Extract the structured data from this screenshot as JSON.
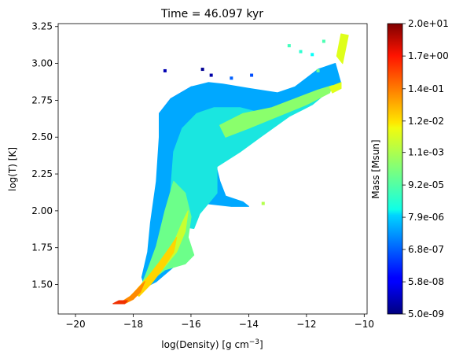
{
  "chart_data": {
    "type": "heatmap",
    "title": "Time = 46.097 kyr",
    "xlabel": "log(Density) [g cm",
    "xlabel_sup": "−3",
    "xlabel_end": "]",
    "ylabel": "log(T) [K]",
    "xlim": [
      -20.6,
      -9.9
    ],
    "ylim": [
      1.3,
      3.27
    ],
    "xticks": [
      -20,
      -18,
      -16,
      -14,
      -12,
      -10
    ],
    "xtick_labels": [
      "−20",
      "−18",
      "−16",
      "−14",
      "−12",
      "−10"
    ],
    "yticks": [
      1.5,
      1.75,
      2.0,
      2.25,
      2.5,
      2.75,
      3.0,
      3.25
    ],
    "ytick_labels": [
      "1.50",
      "1.75",
      "2.00",
      "2.25",
      "2.50",
      "2.75",
      "3.00",
      "3.25"
    ],
    "colorbar": {
      "label": "Mass [Msun]",
      "colormap": "jet",
      "scale": "log",
      "range": [
        5e-09,
        20.0
      ],
      "tick_labels": [
        "5.0e-09",
        "5.8e-08",
        "6.8e-07",
        "7.9e-06",
        "9.2e-05",
        "1.1e-03",
        "1.2e-02",
        "1.4e-01",
        "1.7e+00",
        "2.0e+01"
      ]
    },
    "regions": [
      {
        "level": 0.02,
        "color": "#0026ff",
        "outline": [
          [
            -17.1,
            2.66
          ],
          [
            -16.7,
            2.76
          ],
          [
            -16.0,
            2.84
          ],
          [
            -15.4,
            2.86
          ],
          [
            -14.9,
            2.84
          ],
          [
            -14.5,
            2.82
          ],
          [
            -15.0,
            2.74
          ],
          [
            -16.0,
            2.62
          ],
          [
            -16.7,
            2.55
          ],
          [
            -17.1,
            2.5
          ]
        ]
      },
      {
        "level": 0.15,
        "color": "#00a8ff",
        "outline": [
          [
            -17.1,
            2.5
          ],
          [
            -17.1,
            2.66
          ],
          [
            -16.7,
            2.76
          ],
          [
            -16.0,
            2.84
          ],
          [
            -15.4,
            2.87
          ],
          [
            -14.9,
            2.86
          ],
          [
            -14.0,
            2.83
          ],
          [
            -13.0,
            2.8
          ],
          [
            -12.4,
            2.84
          ],
          [
            -12.0,
            2.9
          ],
          [
            -11.6,
            2.96
          ],
          [
            -11.0,
            3.0
          ],
          [
            -10.8,
            2.86
          ],
          [
            -11.5,
            2.82
          ],
          [
            -12.5,
            2.74
          ],
          [
            -13.8,
            2.63
          ],
          [
            -14.8,
            2.5
          ],
          [
            -15.2,
            2.36
          ],
          [
            -15.0,
            2.2
          ],
          [
            -14.8,
            2.1
          ],
          [
            -14.2,
            2.06
          ],
          [
            -14.0,
            2.03
          ],
          [
            -14.6,
            2.03
          ],
          [
            -15.5,
            2.05
          ],
          [
            -16.0,
            2.02
          ],
          [
            -16.3,
            1.86
          ],
          [
            -16.4,
            1.8
          ],
          [
            -16.1,
            1.73
          ],
          [
            -16.6,
            1.62
          ],
          [
            -17.2,
            1.52
          ],
          [
            -17.6,
            1.48
          ],
          [
            -17.7,
            1.55
          ],
          [
            -17.5,
            1.72
          ],
          [
            -17.4,
            1.92
          ],
          [
            -17.2,
            2.2
          ]
        ]
      },
      {
        "level": 0.35,
        "color": "#1ae6e0",
        "outline": [
          [
            -16.5,
            1.9
          ],
          [
            -16.7,
            2.14
          ],
          [
            -16.6,
            2.4
          ],
          [
            -16.3,
            2.56
          ],
          [
            -15.8,
            2.66
          ],
          [
            -15.2,
            2.7
          ],
          [
            -14.3,
            2.7
          ],
          [
            -13.5,
            2.66
          ],
          [
            -12.7,
            2.7
          ],
          [
            -12.2,
            2.74
          ],
          [
            -11.6,
            2.8
          ],
          [
            -11.2,
            2.84
          ],
          [
            -11.0,
            2.85
          ],
          [
            -11.8,
            2.72
          ],
          [
            -12.6,
            2.64
          ],
          [
            -13.6,
            2.5
          ],
          [
            -14.3,
            2.4
          ],
          [
            -15.1,
            2.3
          ],
          [
            -15.1,
            2.12
          ],
          [
            -15.7,
            1.98
          ],
          [
            -15.9,
            1.88
          ]
        ]
      },
      {
        "level": 0.5,
        "color": "#6cff8a",
        "outline": [
          [
            -17.8,
            1.45
          ],
          [
            -17.3,
            1.54
          ],
          [
            -16.9,
            1.6
          ],
          [
            -16.2,
            1.64
          ],
          [
            -15.9,
            1.7
          ],
          [
            -16.1,
            1.82
          ],
          [
            -16.0,
            1.96
          ],
          [
            -16.2,
            2.12
          ],
          [
            -16.6,
            2.2
          ],
          [
            -16.9,
            2.0
          ],
          [
            -17.2,
            1.76
          ],
          [
            -17.5,
            1.6
          ],
          [
            -17.7,
            1.5
          ]
        ]
      },
      {
        "level": 0.5,
        "color": "#8aff6c",
        "outline": [
          [
            -15.0,
            2.58
          ],
          [
            -14.2,
            2.66
          ],
          [
            -13.2,
            2.7
          ],
          [
            -12.4,
            2.76
          ],
          [
            -11.6,
            2.82
          ],
          [
            -11.1,
            2.85
          ],
          [
            -11.2,
            2.8
          ],
          [
            -12.0,
            2.72
          ],
          [
            -13.0,
            2.64
          ],
          [
            -14.0,
            2.56
          ],
          [
            -14.8,
            2.5
          ]
        ]
      },
      {
        "level": 0.6,
        "color": "#c8ff30",
        "outline": [
          [
            -18.1,
            1.42
          ],
          [
            -17.6,
            1.52
          ],
          [
            -17.1,
            1.62
          ],
          [
            -16.6,
            1.78
          ],
          [
            -16.3,
            1.92
          ],
          [
            -16.1,
            2.0
          ],
          [
            -16.2,
            1.86
          ],
          [
            -16.5,
            1.72
          ],
          [
            -17.0,
            1.6
          ],
          [
            -17.5,
            1.5
          ],
          [
            -17.9,
            1.42
          ]
        ]
      },
      {
        "level": 0.6,
        "color": "#dfff1a",
        "outline": [
          [
            -11.2,
            2.84
          ],
          [
            -10.8,
            2.87
          ],
          [
            -10.8,
            2.83
          ],
          [
            -11.1,
            2.8
          ]
        ]
      },
      {
        "level": 0.6,
        "color": "#dfff1a",
        "outline": [
          [
            -10.75,
            3.0
          ],
          [
            -10.55,
            3.19
          ],
          [
            -10.8,
            3.2
          ],
          [
            -10.95,
            3.05
          ]
        ]
      },
      {
        "level": 0.7,
        "color": "#ffd500",
        "outline": [
          [
            -17.95,
            1.45
          ],
          [
            -17.5,
            1.55
          ],
          [
            -17.1,
            1.65
          ],
          [
            -16.7,
            1.76
          ],
          [
            -16.5,
            1.82
          ],
          [
            -16.6,
            1.72
          ],
          [
            -17.0,
            1.6
          ],
          [
            -17.4,
            1.5
          ],
          [
            -17.8,
            1.42
          ]
        ]
      },
      {
        "level": 0.82,
        "color": "#ff8a00",
        "outline": [
          [
            -18.5,
            1.37
          ],
          [
            -18.1,
            1.42
          ],
          [
            -17.8,
            1.48
          ],
          [
            -17.6,
            1.52
          ],
          [
            -17.75,
            1.45
          ],
          [
            -18.0,
            1.4
          ],
          [
            -18.3,
            1.37
          ]
        ]
      },
      {
        "level": 0.9,
        "color": "#f03000",
        "outline": [
          [
            -18.7,
            1.37
          ],
          [
            -18.3,
            1.37
          ],
          [
            -18.2,
            1.39
          ],
          [
            -18.5,
            1.39
          ]
        ]
      }
    ],
    "speckle": [
      {
        "x": -15.6,
        "y": 2.96,
        "level": 0.02
      },
      {
        "x": -15.3,
        "y": 2.92,
        "level": 0.04
      },
      {
        "x": -14.6,
        "y": 2.9,
        "level": 0.22
      },
      {
        "x": -13.9,
        "y": 2.92,
        "level": 0.2
      },
      {
        "x": -12.2,
        "y": 3.08,
        "level": 0.42
      },
      {
        "x": -11.8,
        "y": 3.06,
        "level": 0.38
      },
      {
        "x": -11.4,
        "y": 3.15,
        "level": 0.45
      },
      {
        "x": -11.6,
        "y": 2.95,
        "level": 0.48
      },
      {
        "x": -16.9,
        "y": 2.95,
        "level": 0.05
      },
      {
        "x": -13.5,
        "y": 2.05,
        "level": 0.55
      },
      {
        "x": -12.6,
        "y": 3.12,
        "level": 0.44
      }
    ]
  }
}
